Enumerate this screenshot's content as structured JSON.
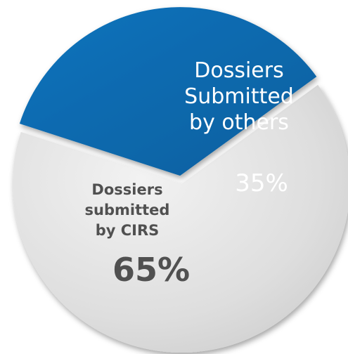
{
  "chart_data": {
    "type": "pie",
    "title": "",
    "slices": [
      {
        "label_lines": [
          "Dossiers",
          "Submitted",
          "by others"
        ],
        "value": 35,
        "value_label": "35%",
        "color": "#0a6db3",
        "text_color": "#ffffff"
      },
      {
        "label_lines": [
          "Dossiers",
          "submitted",
          "by CIRS"
        ],
        "value": 65,
        "value_label": "65%",
        "color": "#dcdcdc",
        "text_color": "#505050"
      }
    ],
    "legend": "none",
    "exploded_slice": "Dossiers Submitted by others"
  }
}
